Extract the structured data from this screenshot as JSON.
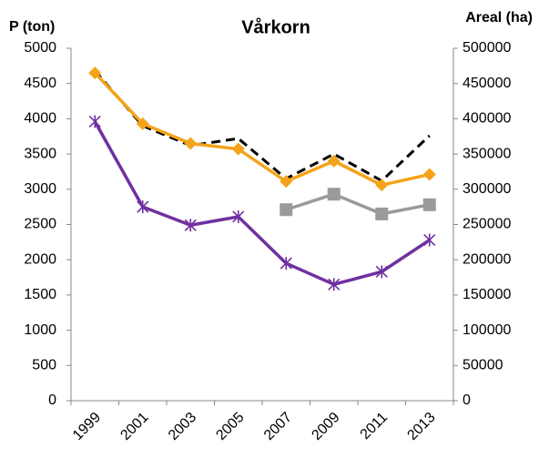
{
  "chart_data": {
    "type": "line",
    "title": "Vårkorn",
    "y_label": "P (ton)",
    "y2_label": "Areal (ha)",
    "categories": [
      "1999",
      "2001",
      "2003",
      "2005",
      "2007",
      "2009",
      "2011",
      "2013"
    ],
    "ylim": [
      0,
      5000
    ],
    "yticks": [
      0,
      500,
      1000,
      1500,
      2000,
      2500,
      3000,
      3500,
      4000,
      4500,
      5000
    ],
    "y2lim": [
      0,
      500000
    ],
    "y2ticks": [
      0,
      50000,
      100000,
      150000,
      200000,
      250000,
      300000,
      350000,
      400000,
      450000,
      500000
    ],
    "grid": false,
    "series": [
      {
        "color": "#000000",
        "dash": true,
        "marker": "none",
        "axis": "y2",
        "values": [
          468000,
          390000,
          362000,
          372000,
          315000,
          350000,
          312000,
          376000
        ]
      },
      {
        "color": "#f5a31a",
        "dash": false,
        "marker": "diamond",
        "values": [
          4650,
          3930,
          3650,
          3570,
          3110,
          3400,
          3060,
          3210
        ]
      },
      {
        "color": "#9a9a9a",
        "dash": false,
        "marker": "square",
        "values": [
          null,
          null,
          null,
          null,
          2710,
          2930,
          2650,
          2780
        ]
      },
      {
        "color": "#7030a0",
        "dash": false,
        "marker": "star",
        "values": [
          3960,
          2750,
          2490,
          2610,
          1950,
          1650,
          1830,
          2280
        ]
      }
    ]
  }
}
